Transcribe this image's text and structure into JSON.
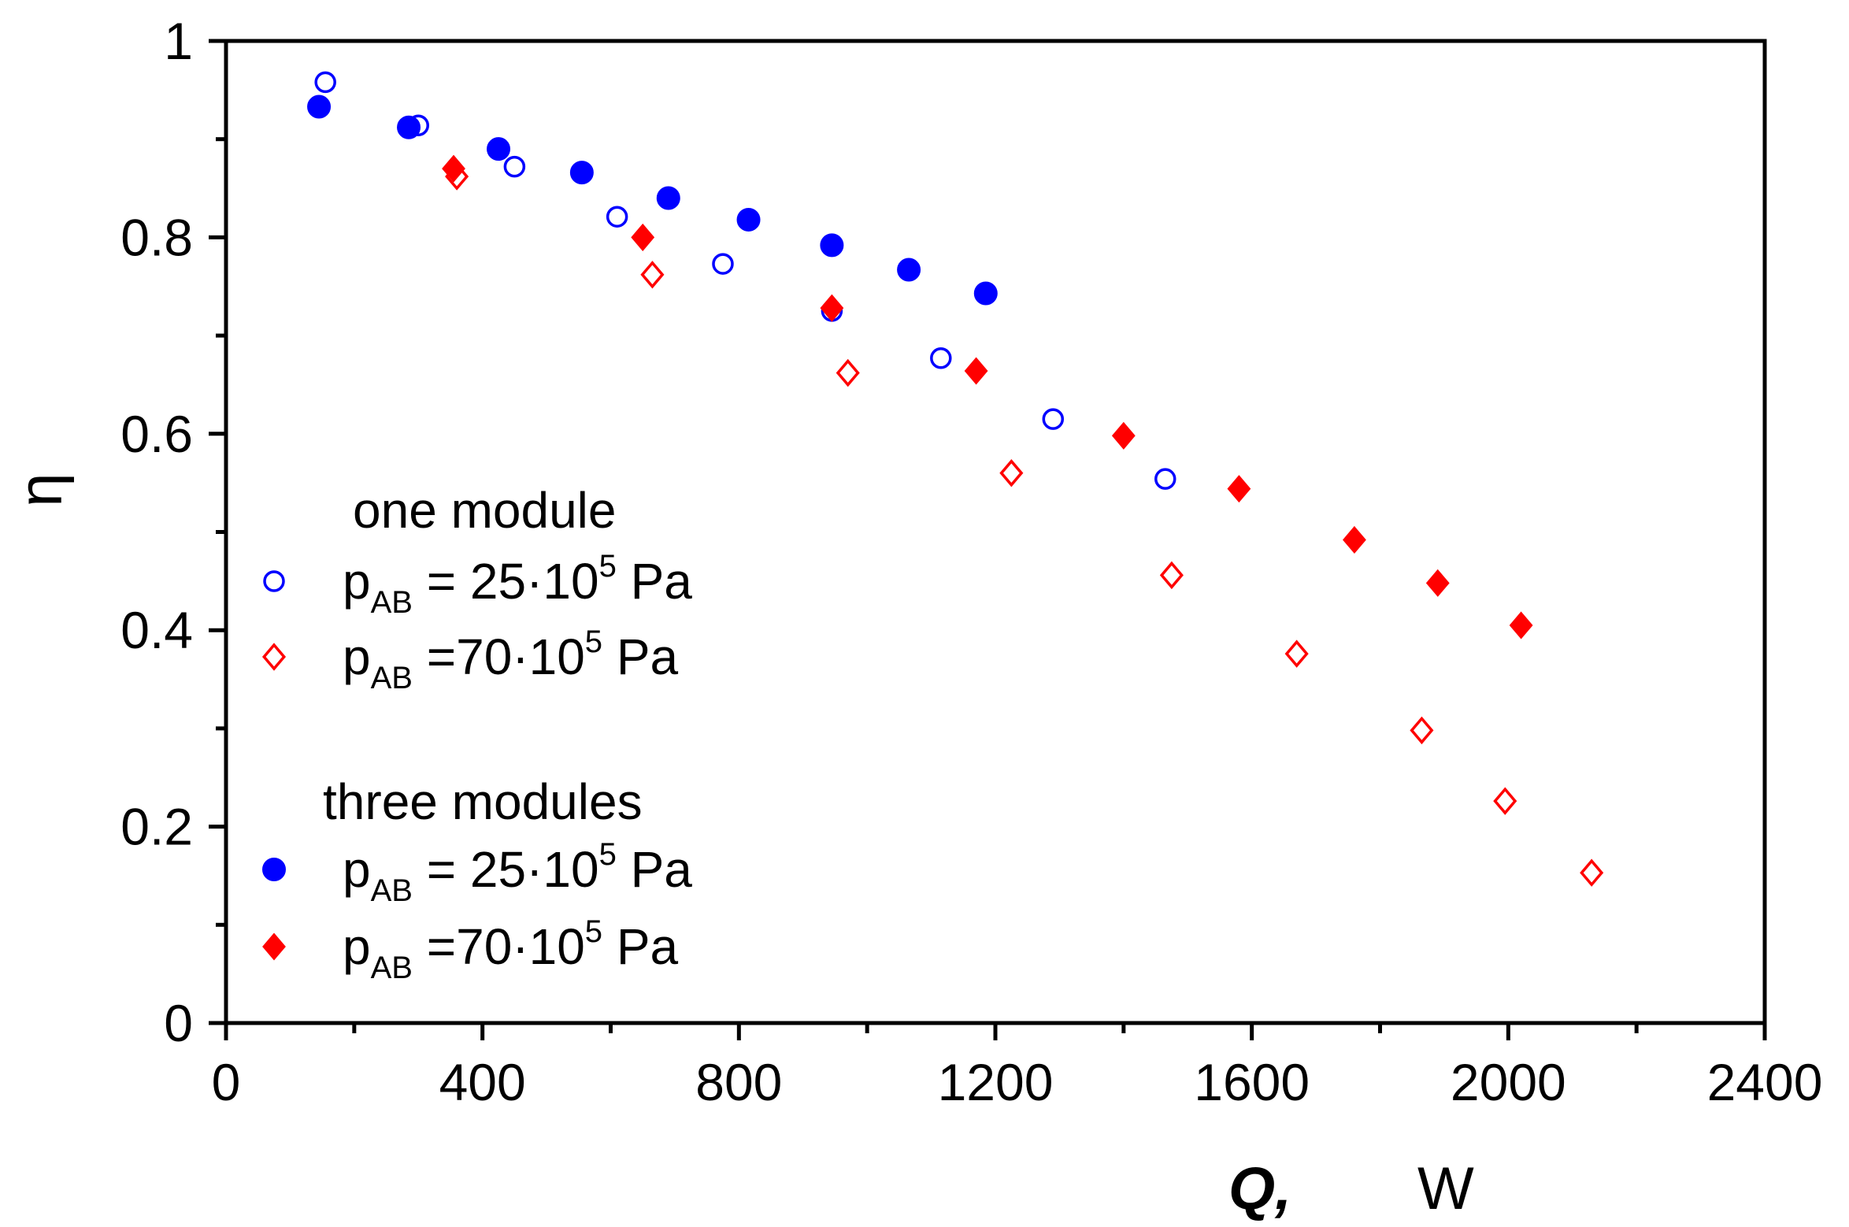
{
  "chart_data": {
    "type": "scatter",
    "title": "",
    "xlabel": "Q,",
    "xunit": "W",
    "ylabel": "η",
    "xlim": [
      0,
      2400
    ],
    "ylim": [
      0,
      1
    ],
    "xticks": [
      0,
      400,
      800,
      1200,
      1600,
      2000,
      2400
    ],
    "xtick_labels": [
      "0",
      "400",
      "800",
      "1200",
      "1600",
      "2000",
      "2400"
    ],
    "yticks": [
      0,
      0.2,
      0.4,
      0.6,
      0.8,
      1
    ],
    "ytick_labels": [
      "0",
      "0.2",
      "0.4",
      "0.6",
      "0.8",
      "1"
    ],
    "grid": false,
    "legend_position": "left",
    "legend_groups": [
      {
        "title": "one module"
      },
      {
        "title": "three modules"
      }
    ],
    "series": [
      {
        "name": "one module, p_AB = 25·10^5 Pa",
        "group": 0,
        "label_main": "p",
        "label_sub": "AB",
        "label_mid": " = 25·10",
        "label_sup": "5",
        "label_end": " Pa",
        "marker": "circle-open",
        "color": "#0000ff",
        "x": [
          155,
          300,
          450,
          610,
          775,
          945,
          1115,
          1290,
          1465
        ],
        "y": [
          0.958,
          0.914,
          0.872,
          0.821,
          0.773,
          0.725,
          0.677,
          0.615,
          0.554
        ]
      },
      {
        "name": "one module, p_AB = 70·10^5 Pa",
        "group": 0,
        "label_main": "p",
        "label_sub": "AB",
        "label_mid": " =70·10",
        "label_sup": "5",
        "label_end": " Pa",
        "marker": "diamond-open",
        "color": "#ff0000",
        "x": [
          360,
          665,
          970,
          1225,
          1475,
          1670,
          1865,
          1995,
          2130
        ],
        "y": [
          0.862,
          0.762,
          0.662,
          0.56,
          0.456,
          0.376,
          0.298,
          0.226,
          0.153
        ]
      },
      {
        "name": "three modules, p_AB = 25·10^5 Pa",
        "group": 1,
        "label_main": "p",
        "label_sub": "AB",
        "label_mid": " = 25·10",
        "label_sup": "5",
        "label_end": " Pa",
        "marker": "circle-filled",
        "color": "#0000ff",
        "x": [
          145,
          285,
          425,
          555,
          690,
          815,
          945,
          1065,
          1185
        ],
        "y": [
          0.933,
          0.912,
          0.89,
          0.866,
          0.84,
          0.818,
          0.792,
          0.767,
          0.743
        ]
      },
      {
        "name": "three modules, p_AB = 70·10^5 Pa",
        "group": 1,
        "label_main": "p",
        "label_sub": "AB",
        "label_mid": " =70·10",
        "label_sup": "5",
        "label_end": " Pa",
        "marker": "diamond-filled",
        "color": "#ff0000",
        "x": [
          355,
          650,
          945,
          1170,
          1400,
          1580,
          1760,
          1890,
          2020
        ],
        "y": [
          0.87,
          0.8,
          0.728,
          0.664,
          0.598,
          0.544,
          0.492,
          0.448,
          0.405
        ]
      }
    ]
  }
}
